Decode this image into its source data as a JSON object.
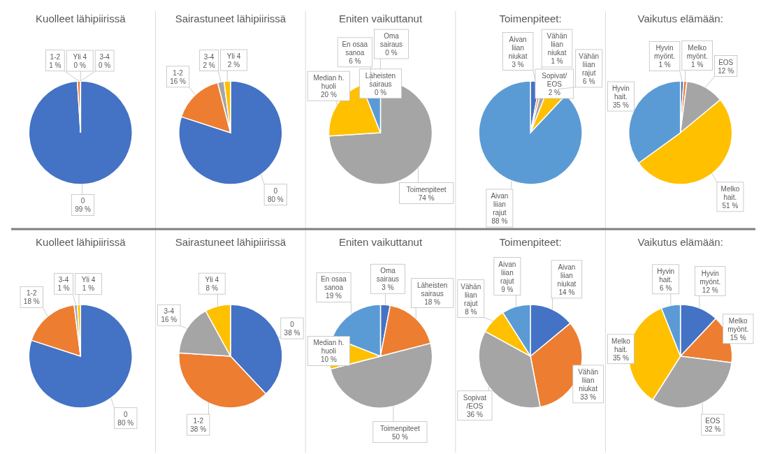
{
  "chart_data": [
    {
      "type": "pie",
      "title": "Kuolleet lähipiirissä",
      "categories": [
        "0",
        "1-2",
        "3-4",
        "Yli 4"
      ],
      "values": [
        99,
        1,
        0,
        0
      ],
      "value_labels": [
        "99 %",
        "1 %",
        "0 %",
        "0 %"
      ],
      "colors": [
        "#4472c4",
        "#ed7d31",
        "#a5a5a5",
        "#ffc000"
      ]
    },
    {
      "type": "pie",
      "title": "Sairastuneet lähipiirissä",
      "categories": [
        "0",
        "1-2",
        "3-4",
        "Yli 4"
      ],
      "values": [
        80,
        16,
        2,
        2
      ],
      "value_labels": [
        "80 %",
        "16 %",
        "2 %",
        "2 %"
      ],
      "colors": [
        "#4472c4",
        "#ed7d31",
        "#a5a5a5",
        "#ffc000"
      ]
    },
    {
      "type": "pie",
      "title": "Eniten vaikuttanut",
      "categories": [
        "Oma sairaus",
        "Läheisten sairaus",
        "Toimenpiteet",
        "Median h. huoli",
        "En osaa sanoa"
      ],
      "values": [
        0,
        0,
        74,
        20,
        6
      ],
      "value_labels": [
        "0 %",
        "0 %",
        "74 %",
        "20 %",
        "6 %"
      ],
      "colors": [
        "#4472c4",
        "#ed7d31",
        "#a5a5a5",
        "#ffc000",
        "#5b9bd5"
      ]
    },
    {
      "type": "pie",
      "title": "Toimenpiteet:",
      "categories": [
        "Aivan liian niukat",
        "Vähän liian niukat",
        "Sopivat/ EOS",
        "Vähän liian rajut",
        "Aivan liian rajut"
      ],
      "values": [
        3,
        1,
        2,
        6,
        88
      ],
      "value_labels": [
        "3 %",
        "1 %",
        "2 %",
        "6 %",
        "88 %"
      ],
      "colors": [
        "#4472c4",
        "#ed7d31",
        "#a5a5a5",
        "#ffc000",
        "#5b9bd5"
      ]
    },
    {
      "type": "pie",
      "title": "Vaikutus elämään:",
      "categories": [
        "Hyvin myönt.",
        "Melko myönt.",
        "EOS",
        "Melko hait.",
        "Hyvin hait."
      ],
      "values": [
        1,
        1,
        12,
        51,
        35
      ],
      "value_labels": [
        "1 %",
        "1 %",
        "12 %",
        "51 %",
        "35 %"
      ],
      "colors": [
        "#4472c4",
        "#ed7d31",
        "#a5a5a5",
        "#ffc000",
        "#5b9bd5"
      ]
    },
    {
      "type": "pie",
      "title": "Kuolleet lähipiirissä",
      "categories": [
        "0",
        "1-2",
        "3-4",
        "Yli 4"
      ],
      "values": [
        80,
        18,
        1,
        1
      ],
      "value_labels": [
        "80 %",
        "18 %",
        "1 %",
        "1 %"
      ],
      "colors": [
        "#4472c4",
        "#ed7d31",
        "#a5a5a5",
        "#ffc000"
      ]
    },
    {
      "type": "pie",
      "title": "Sairastuneet lähipiirissä",
      "categories": [
        "0",
        "1-2",
        "3-4",
        "Yli 4"
      ],
      "values": [
        38,
        38,
        16,
        8
      ],
      "value_labels": [
        "38 %",
        "38 %",
        "16 %",
        "8 %"
      ],
      "colors": [
        "#4472c4",
        "#ed7d31",
        "#a5a5a5",
        "#ffc000"
      ]
    },
    {
      "type": "pie",
      "title": "Eniten vaikuttanut",
      "categories": [
        "Oma sairaus",
        "Läheisten sairaus",
        "Toimenpiteet",
        "Median h. huoli",
        "En osaa sanoa"
      ],
      "values": [
        3,
        18,
        50,
        10,
        19
      ],
      "value_labels": [
        "3 %",
        "18 %",
        "50 %",
        "10 %",
        "19 %"
      ],
      "colors": [
        "#4472c4",
        "#ed7d31",
        "#a5a5a5",
        "#ffc000",
        "#5b9bd5"
      ]
    },
    {
      "type": "pie",
      "title": "Toimenpiteet:",
      "categories": [
        "Aivan liian niukat",
        "Vähän liian niukat",
        "Sopivat /EOS",
        "Vähän liian rajut",
        "Aivan liian rajut"
      ],
      "values": [
        14,
        33,
        36,
        8,
        9
      ],
      "value_labels": [
        "14 %",
        "33 %",
        "36 %",
        "8 %",
        "9 %"
      ],
      "colors": [
        "#4472c4",
        "#ed7d31",
        "#a5a5a5",
        "#ffc000",
        "#5b9bd5"
      ]
    },
    {
      "type": "pie",
      "title": "Vaikutus elämään:",
      "categories": [
        "Hyvin myönt.",
        "Melko myönt.",
        "EOS",
        "Melko hait.",
        "Hyvin hait."
      ],
      "values": [
        12,
        15,
        32,
        35,
        6
      ],
      "value_labels": [
        "12 %",
        "15 %",
        "32 %",
        "35 %",
        "6 %"
      ],
      "colors": [
        "#4472c4",
        "#ed7d31",
        "#a5a5a5",
        "#ffc000",
        "#5b9bd5"
      ]
    }
  ]
}
